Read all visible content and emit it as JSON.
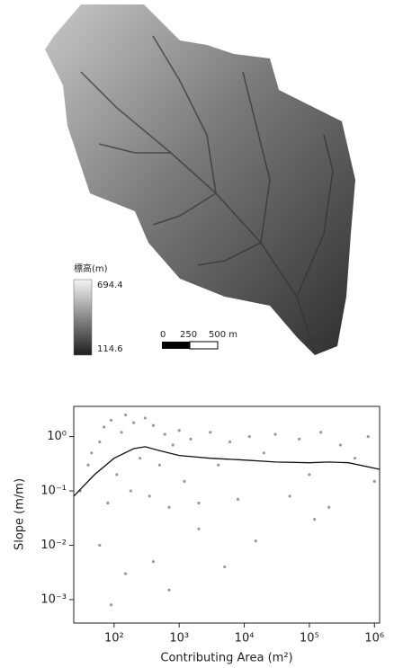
{
  "map": {
    "legend_title": "標高(m)",
    "legend_max": "694.4",
    "legend_min": "114.6",
    "scale_labels": [
      "0",
      "250",
      "500 m"
    ]
  },
  "chart_data": {
    "type": "scatter",
    "xscale": "log",
    "yscale": "log",
    "x_label": "Contributing Area (m²)",
    "y_label": "Slope (m/m)",
    "xlim": [
      24,
      1200000
    ],
    "ylim": [
      0.00037,
      3.6
    ],
    "xticks": [
      {
        "value": 100,
        "label": "10²"
      },
      {
        "value": 1000,
        "label": "10³"
      },
      {
        "value": 10000,
        "label": "10⁴"
      },
      {
        "value": 100000,
        "label": "10⁵"
      },
      {
        "value": 1000000,
        "label": "10⁶"
      }
    ],
    "yticks": [
      {
        "value": 0.001,
        "label": "10⁻³"
      },
      {
        "value": 0.01,
        "label": "10⁻²"
      },
      {
        "value": 0.1,
        "label": "10⁻¹"
      },
      {
        "value": 1,
        "label": "10⁰"
      }
    ],
    "series": [
      {
        "type": "scatter",
        "color": "#9a9a9a",
        "x": [
          30,
          40,
          45,
          60,
          70,
          80,
          90,
          110,
          130,
          150,
          180,
          200,
          250,
          300,
          350,
          400,
          500,
          600,
          700,
          800,
          1000,
          1200,
          1500,
          2000,
          3000,
          4000,
          6000,
          8000,
          12000,
          20000,
          30000,
          50000,
          70000,
          100000,
          150000,
          200000,
          300000,
          500000,
          800000,
          1000000,
          60,
          150,
          400,
          2000,
          15000,
          120000,
          90,
          700,
          5000
        ],
        "values": [
          0.1,
          0.3,
          0.5,
          0.8,
          1.5,
          0.06,
          2,
          0.2,
          1.2,
          2.5,
          0.1,
          1.8,
          0.4,
          2.2,
          0.08,
          1.6,
          0.3,
          1.1,
          0.05,
          0.7,
          1.3,
          0.15,
          0.9,
          0.06,
          1.2,
          0.3,
          0.8,
          0.07,
          1.0,
          0.5,
          1.1,
          0.08,
          0.9,
          0.2,
          1.2,
          0.05,
          0.7,
          0.4,
          1.0,
          0.15,
          0.01,
          0.003,
          0.005,
          0.02,
          0.012,
          0.03,
          0.0008,
          0.0015,
          0.004
        ]
      },
      {
        "type": "line",
        "color": "#111111",
        "x": [
          24,
          50,
          100,
          200,
          300,
          500,
          1000,
          3000,
          10000,
          30000,
          100000,
          200000,
          400000,
          1200000
        ],
        "values": [
          0.08,
          0.2,
          0.4,
          0.6,
          0.65,
          0.55,
          0.45,
          0.4,
          0.37,
          0.34,
          0.33,
          0.34,
          0.33,
          0.25
        ]
      }
    ]
  }
}
